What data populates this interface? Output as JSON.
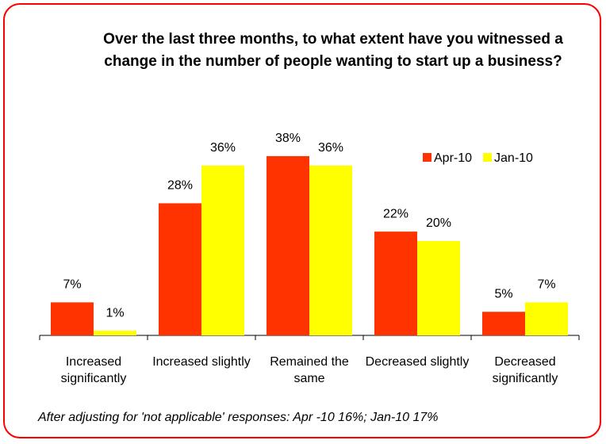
{
  "chart_data": {
    "type": "bar",
    "title": "Over the last three months, to what extent have you witnessed a change in the number of people wanting to start up a business?",
    "categories": [
      "Increased significantly",
      "Increased slightly",
      "Remained the same",
      "Decreased slightly",
      "Decreased significantly"
    ],
    "series": [
      {
        "name": "Apr-10",
        "color": "#ff3300",
        "values": [
          7,
          28,
          38,
          22,
          5
        ],
        "value_labels": [
          "7%",
          "28%",
          "38%",
          "22%",
          "5%"
        ]
      },
      {
        "name": "Jan-10",
        "color": "#ffff00",
        "values": [
          1,
          36,
          36,
          20,
          7
        ],
        "value_labels": [
          "1%",
          "36%",
          "36%",
          "20%",
          "7%"
        ]
      }
    ],
    "ylim": [
      0,
      40
    ],
    "legend": "top-right",
    "footnote": "After adjusting for 'not applicable' responses: Apr -10 16%; Jan-10 17%"
  }
}
